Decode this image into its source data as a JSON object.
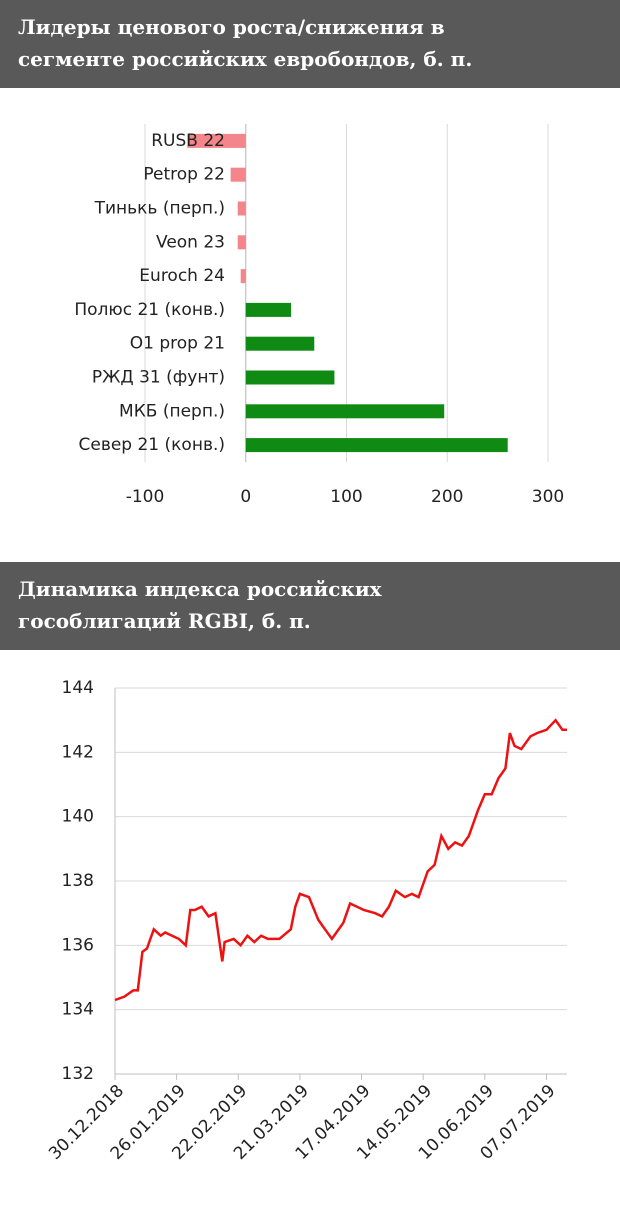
{
  "chart_data": [
    {
      "type": "hbar",
      "title": "Лидеры ценового роста/снижения в сегменте российских евробондов, б. п.",
      "categories": [
        "RUSB 22",
        "Petrop 22",
        "Тинькь (перп.)",
        "Veon 23",
        "Euroch 24",
        "Полюс 21 (конв.)",
        "O1 prop 21",
        "РЖД 31 (фунт)",
        "МКБ (перп.)",
        "Север 21 (конв.)"
      ],
      "values": [
        -58,
        -15,
        -8,
        -8,
        -5,
        45,
        68,
        88,
        197,
        260
      ],
      "negative_color": "#f4858a",
      "positive_color": "#0f8a12",
      "xlim": [
        -100,
        300
      ],
      "xticks": [
        -100,
        0,
        100,
        200,
        300
      ],
      "grid": true
    },
    {
      "type": "line",
      "title": "Динамика индекса российских гособлигаций RGBI, б. п.",
      "x": [
        "2018-12-30",
        "2019-01-03",
        "2019-01-07",
        "2019-01-09",
        "2019-01-11",
        "2019-01-13",
        "2019-01-14",
        "2019-01-16",
        "2019-01-19",
        "2019-01-21",
        "2019-01-24",
        "2019-01-27",
        "2019-01-30",
        "2019-02-01",
        "2019-02-03",
        "2019-02-06",
        "2019-02-09",
        "2019-02-12",
        "2019-02-13",
        "2019-02-15",
        "2019-02-16",
        "2019-02-20",
        "2019-02-23",
        "2019-02-26",
        "2019-03-01",
        "2019-03-04",
        "2019-03-07",
        "2019-03-12",
        "2019-03-17",
        "2019-03-19",
        "2019-03-21",
        "2019-03-25",
        "2019-03-29",
        "2019-04-01",
        "2019-04-04",
        "2019-04-09",
        "2019-04-12",
        "2019-04-15",
        "2019-04-18",
        "2019-04-23",
        "2019-04-26",
        "2019-04-29",
        "2019-05-02",
        "2019-05-06",
        "2019-05-09",
        "2019-05-12",
        "2019-05-16",
        "2019-05-19",
        "2019-05-22",
        "2019-05-25",
        "2019-05-28",
        "2019-05-31",
        "2019-06-03",
        "2019-06-07",
        "2019-06-10",
        "2019-06-13",
        "2019-06-16",
        "2019-06-19",
        "2019-06-21",
        "2019-06-23",
        "2019-06-26",
        "2019-06-30",
        "2019-07-03",
        "2019-07-07",
        "2019-07-11",
        "2019-07-14",
        "2019-07-16"
      ],
      "series": [
        {
          "name": "RGBI",
          "color": "#ee1111",
          "values": [
            134.3,
            134.4,
            134.6,
            134.6,
            135.8,
            135.9,
            136.1,
            136.5,
            136.3,
            136.4,
            136.3,
            136.2,
            136.0,
            137.1,
            137.1,
            137.2,
            136.9,
            137.0,
            136.5,
            135.5,
            136.1,
            136.2,
            136.0,
            136.3,
            136.1,
            136.3,
            136.2,
            136.2,
            136.5,
            137.2,
            137.6,
            137.5,
            136.8,
            136.5,
            136.2,
            136.7,
            137.3,
            137.2,
            137.1,
            137.0,
            136.9,
            137.2,
            137.7,
            137.5,
            137.6,
            137.5,
            138.3,
            138.5,
            139.4,
            139.0,
            139.2,
            139.1,
            139.4,
            140.2,
            140.7,
            140.7,
            141.2,
            141.5,
            142.6,
            142.2,
            142.1,
            142.5,
            142.6,
            142.7,
            143.0,
            142.7,
            142.7
          ]
        }
      ],
      "xlim": [
        "2018-12-30",
        "2019-07-16"
      ],
      "xticks": [
        {
          "value": "2018-12-30",
          "label": "30.12.2018"
        },
        {
          "value": "2019-01-26",
          "label": "26.01.2019"
        },
        {
          "value": "2019-02-22",
          "label": "22.02.2019"
        },
        {
          "value": "2019-03-21",
          "label": "21.03.2019"
        },
        {
          "value": "2019-04-17",
          "label": "17.04.2019"
        },
        {
          "value": "2019-05-14",
          "label": "14.05.2019"
        },
        {
          "value": "2019-06-10",
          "label": "10.06.2019"
        },
        {
          "value": "2019-07-07",
          "label": "07.07.2019"
        }
      ],
      "ylim": [
        132,
        144
      ],
      "yticks": [
        132,
        134,
        136,
        138,
        140,
        142,
        144
      ],
      "grid": true
    }
  ]
}
